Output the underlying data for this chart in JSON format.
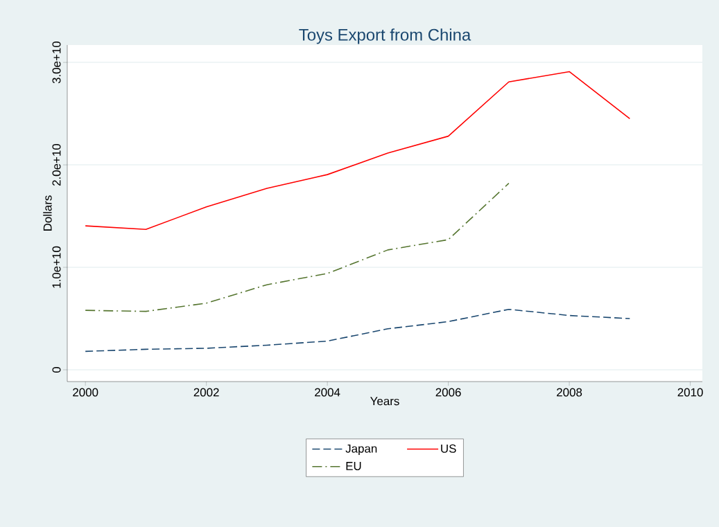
{
  "chart_data": {
    "type": "line",
    "title": "Toys Export from China",
    "xlabel": "Years",
    "ylabel": "Dollars",
    "x": [
      2000,
      2001,
      2002,
      2003,
      2004,
      2005,
      2006,
      2007,
      2008,
      2009
    ],
    "series": [
      {
        "name": "Japan",
        "color": "#1a476f",
        "line_style": "dashed",
        "values": [
          1800000000,
          2000000000,
          2100000000,
          2400000000,
          2800000000,
          4000000000,
          4700000000,
          5900000000,
          5300000000,
          5000000000
        ]
      },
      {
        "name": "US",
        "color": "#ff0000",
        "line_style": "solid",
        "values": [
          14050000000,
          13700000000,
          15900000000,
          17700000000,
          19050000000,
          21150000000,
          22800000000,
          28100000000,
          29100000000,
          24500000000
        ]
      },
      {
        "name": "EU",
        "color": "#55752f",
        "line_style": "dashdot",
        "values": [
          5800000000,
          5700000000,
          6500000000,
          8300000000,
          9400000000,
          11700000000,
          12700000000,
          18200000000,
          null,
          null
        ]
      }
    ],
    "xlim": [
      1999.7,
      2010.2
    ],
    "ylim": [
      -1150000000,
      31700000000
    ],
    "xticks": [
      2000,
      2002,
      2004,
      2006,
      2008,
      2010
    ],
    "yticks": [
      0,
      {
        "value": 10000000000,
        "label": "1.0e+10"
      },
      {
        "value": 20000000000,
        "label": "2.0e+10"
      },
      {
        "value": 30000000000,
        "label": "3.0e+10"
      }
    ],
    "grid": "y",
    "legend": "bottom",
    "marker": "none"
  }
}
